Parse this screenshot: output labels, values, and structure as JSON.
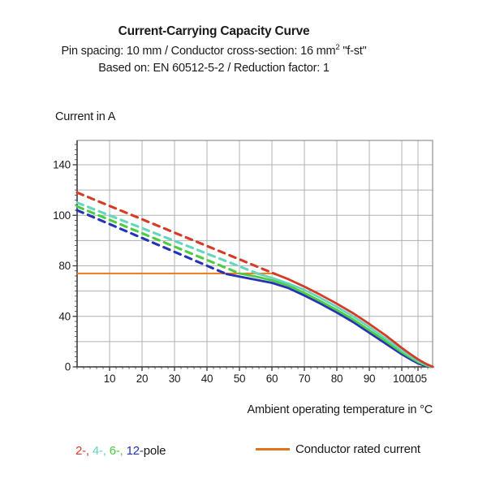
{
  "header": {
    "title": "Current-Carrying Capacity Curve",
    "subtitle_line1": {
      "pre": "Pin spacing: 10 mm / Conductor cross-section: 16 mm",
      "sup": "2",
      "post": " \"f-st\""
    },
    "subtitle_line2": "Based on: EN 60512-5-2 / Reduction factor: 1"
  },
  "axes": {
    "y_title": "Current in A",
    "x_title": "Ambient operating temperature in °C"
  },
  "legend": {
    "pole_items": [
      {
        "label": "2-",
        "color": "#d63b28"
      },
      {
        "label": "4-",
        "color": "#63d6bb"
      },
      {
        "label": "6-",
        "color": "#4ecb40"
      },
      {
        "label": "12-",
        "color": "#2433b8"
      }
    ],
    "separator": ", ",
    "suffix": "pole",
    "suffix_color": "#1a1a1a",
    "rated": {
      "label": "Conductor rated current",
      "color": "#e0751f"
    }
  },
  "chart_data": {
    "type": "line",
    "title": "Current-Carrying Capacity Curve",
    "xlabel": "Ambient operating temperature in °C",
    "ylabel": "Current in A",
    "x_ticks": [
      10,
      20,
      30,
      40,
      50,
      60,
      70,
      80,
      90,
      100,
      105
    ],
    "x_range": [
      0,
      109.6
    ],
    "y_tick_labels": [
      0,
      40,
      80,
      100,
      140
    ],
    "y_ticks_equally_spaced": true,
    "grid": true,
    "legend_position": "bottom",
    "series": [
      {
        "name": "12-pole",
        "color": "#2433b8",
        "style": "dashed-then-solid",
        "dashed": [
          [
            0,
            104
          ],
          [
            46,
            73.5
          ]
        ],
        "solid": [
          [
            46,
            73.5
          ],
          [
            50,
            71.5
          ],
          [
            55,
            69
          ],
          [
            60,
            66.5
          ],
          [
            65,
            62.5
          ],
          [
            70,
            56.5
          ],
          [
            75,
            50
          ],
          [
            80,
            43
          ],
          [
            85,
            35.5
          ],
          [
            90,
            27
          ],
          [
            95,
            18.5
          ],
          [
            100,
            10
          ],
          [
            103,
            5.5
          ],
          [
            105,
            2.8
          ],
          [
            107,
            1
          ],
          [
            108.9,
            0
          ]
        ]
      },
      {
        "name": "6-pole",
        "color": "#4ecb40",
        "style": "dashed-then-solid",
        "dashed": [
          [
            0,
            107
          ],
          [
            50,
            74
          ]
        ],
        "solid": [
          [
            50,
            74
          ],
          [
            55,
            71.5
          ],
          [
            60,
            68.5
          ],
          [
            65,
            64.5
          ],
          [
            70,
            58.5
          ],
          [
            75,
            52
          ],
          [
            80,
            45
          ],
          [
            85,
            37.5
          ],
          [
            90,
            29
          ],
          [
            95,
            20.5
          ],
          [
            100,
            11.5
          ],
          [
            103,
            6.8
          ],
          [
            105,
            3.8
          ],
          [
            107,
            1.6
          ],
          [
            109.1,
            0
          ]
        ]
      },
      {
        "name": "4-pole",
        "color": "#63d6bb",
        "style": "dashed-then-solid",
        "dashed": [
          [
            0,
            110
          ],
          [
            56,
            73.5
          ]
        ],
        "solid": [
          [
            56,
            73.5
          ],
          [
            60,
            70.5
          ],
          [
            65,
            66
          ],
          [
            70,
            61
          ],
          [
            75,
            54.5
          ],
          [
            80,
            47.5
          ],
          [
            85,
            40
          ],
          [
            90,
            31.5
          ],
          [
            95,
            22.5
          ],
          [
            100,
            13
          ],
          [
            103,
            8
          ],
          [
            105,
            4.8
          ],
          [
            107,
            2.2
          ],
          [
            109.3,
            0
          ]
        ]
      },
      {
        "name": "2-pole",
        "color": "#d63b28",
        "style": "dashed-then-solid",
        "dashed": [
          [
            0,
            118
          ],
          [
            61,
            73.5
          ]
        ],
        "solid": [
          [
            61,
            73.5
          ],
          [
            65,
            69.5
          ],
          [
            70,
            63.5
          ],
          [
            75,
            57
          ],
          [
            80,
            50
          ],
          [
            85,
            42.5
          ],
          [
            90,
            34
          ],
          [
            95,
            25
          ],
          [
            100,
            15
          ],
          [
            103,
            9.5
          ],
          [
            105,
            6
          ],
          [
            107,
            3
          ],
          [
            108.5,
            1.2
          ],
          [
            109.6,
            0
          ]
        ]
      }
    ],
    "rated_current_line": {
      "label": "Conductor rated current",
      "value_a": 74,
      "from_c": 0,
      "to_c": 61,
      "color": "#e87b1e"
    }
  }
}
